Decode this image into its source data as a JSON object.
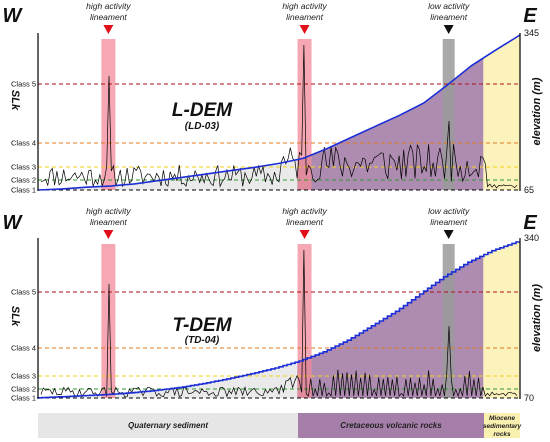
{
  "colors": {
    "high_activity": "#f28b9a",
    "low_activity": "#9a9a9a",
    "quaternary": "#e6e6e6",
    "cretaceous": "#a57fa9",
    "miocene": "#faf0b0",
    "elevation_line": "#1c2fd6",
    "slk_line": "#000000",
    "class5": "#b0121b",
    "class4": "#e07a22",
    "class3": "#f2d21a",
    "class2": "#2f9a2f",
    "class1": "#000000"
  },
  "direction_labels": {
    "west": "W",
    "east": "E"
  },
  "lineament_labels": {
    "high": [
      "high activity",
      "lineament"
    ],
    "low": [
      "low activity",
      "lineament"
    ]
  },
  "class_labels": [
    "Class 5",
    "Class 4",
    "Class 3",
    "Class 2",
    "Class 1"
  ],
  "geology": {
    "quaternary": "Quaternary sediment",
    "cretaceous": "Cretaceous volcanic rocks",
    "miocene": [
      "Miocene",
      "sedimentary",
      "rocks"
    ]
  },
  "chart_data": [
    {
      "type": "line",
      "title": "L-DEM",
      "subtitle": "(LD-03)",
      "ylabel_left": "SLk",
      "ylabel_right": "elevation (m)",
      "elevation_ticks": [
        "345",
        "65"
      ],
      "elevation_range": [
        65,
        345
      ],
      "lineaments": [
        {
          "kind": "high",
          "position": 0.146
        },
        {
          "kind": "high",
          "position": 0.553
        },
        {
          "kind": "low",
          "position": 0.852
        }
      ],
      "elevation_profile": {
        "x": [
          0,
          0.05,
          0.1,
          0.15,
          0.2,
          0.25,
          0.3,
          0.35,
          0.4,
          0.45,
          0.5,
          0.55,
          0.6,
          0.65,
          0.7,
          0.75,
          0.8,
          0.85,
          0.9,
          0.95,
          1.0
        ],
        "elevation": [
          65,
          67,
          70,
          72,
          76,
          82,
          88,
          94,
          100,
          106,
          113,
          122,
          140,
          160,
          180,
          200,
          222,
          255,
          290,
          318,
          345
        ]
      }
    },
    {
      "type": "line",
      "title": "T-DEM",
      "subtitle": "(TD-04)",
      "ylabel_left": "SLk",
      "ylabel_right": "elevation (m)",
      "elevation_ticks": [
        "340",
        "70"
      ],
      "elevation_range": [
        70,
        340
      ],
      "lineaments": [
        {
          "kind": "high",
          "position": 0.146
        },
        {
          "kind": "high",
          "position": 0.553
        },
        {
          "kind": "low",
          "position": 0.852
        }
      ],
      "elevation_profile": {
        "x": [
          0,
          0.05,
          0.1,
          0.15,
          0.2,
          0.25,
          0.3,
          0.35,
          0.4,
          0.45,
          0.5,
          0.55,
          0.6,
          0.65,
          0.7,
          0.75,
          0.8,
          0.85,
          0.9,
          0.95,
          1.0
        ],
        "elevation": [
          70,
          72,
          74,
          76,
          79,
          83,
          88,
          95,
          103,
          112,
          122,
          134,
          150,
          170,
          195,
          220,
          250,
          280,
          305,
          325,
          340
        ]
      }
    }
  ]
}
